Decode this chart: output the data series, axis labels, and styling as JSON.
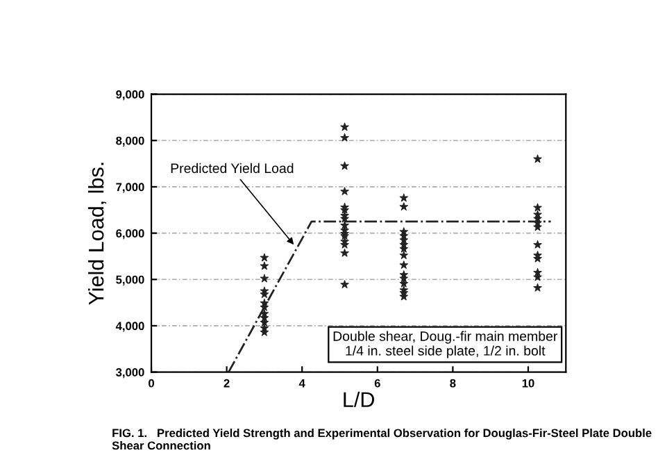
{
  "chart_data": {
    "type": "scatter",
    "xlabel": "L/D",
    "ylabel": "Yield Load, lbs.",
    "xlim": [
      0,
      11
    ],
    "xticks": [
      0,
      2,
      4,
      6,
      8,
      10
    ],
    "ylim": [
      3000,
      9000
    ],
    "yticks": [
      {
        "value": 3000,
        "label": "3,000"
      },
      {
        "value": 4000,
        "label": "4,000"
      },
      {
        "value": 5000,
        "label": "5,000"
      },
      {
        "value": 6000,
        "label": "6,000"
      },
      {
        "value": 7000,
        "label": "7,000"
      },
      {
        "value": 8000,
        "label": "8,000"
      },
      {
        "value": 9000,
        "label": "9,000"
      }
    ],
    "grid": "y",
    "legend": false,
    "series": [
      {
        "type": "line",
        "color": "#222222",
        "line_style": "dashdot",
        "marker": "none",
        "x": [
          2.05,
          4.25,
          10.6
        ],
        "values": [
          3000,
          6250,
          6250
        ]
      },
      {
        "color": "#222222",
        "marker": "star",
        "x": [
          3,
          3,
          3,
          3,
          3,
          3,
          3,
          3,
          3,
          3,
          3,
          3,
          5.13,
          5.13,
          5.13,
          5.13,
          5.13,
          5.13,
          5.13,
          5.13,
          5.13,
          5.13,
          5.13,
          5.13,
          5.13,
          5.13,
          5.13,
          5.13,
          6.7,
          6.7,
          6.7,
          6.7,
          6.7,
          6.7,
          6.7,
          6.7,
          6.7,
          6.7,
          6.7,
          6.7,
          6.7,
          6.7,
          6.7,
          10.25,
          10.25,
          10.25,
          10.25,
          10.25,
          10.25,
          10.25,
          10.25,
          10.25,
          10.25,
          10.25,
          10.25
        ],
        "values": [
          5470,
          5290,
          5020,
          4750,
          4680,
          4490,
          4400,
          4260,
          4170,
          4070,
          3950,
          3860,
          8290,
          8060,
          7450,
          6900,
          6560,
          6500,
          6380,
          6310,
          6170,
          6060,
          5990,
          5940,
          5820,
          5750,
          5570,
          4890,
          6760,
          6570,
          6030,
          5940,
          5850,
          5750,
          5660,
          5520,
          5310,
          5100,
          5020,
          4910,
          4770,
          4710,
          4630,
          7600,
          6550,
          6400,
          6310,
          6220,
          6130,
          5750,
          5520,
          5450,
          5150,
          5050,
          4820
        ]
      }
    ],
    "annotations": [
      {
        "text": "Predicted Yield Load",
        "x": 3.78,
        "y": 5750
      },
      "Double shear, Doug.-fir main member\n1/4 in. steel side plate, 1/2 in. bolt",
      "FIG. 1.   Predicted Yield Strength and Experimental Observation for Douglas-Fir-Steel Plate Double Shear Connection"
    ]
  }
}
